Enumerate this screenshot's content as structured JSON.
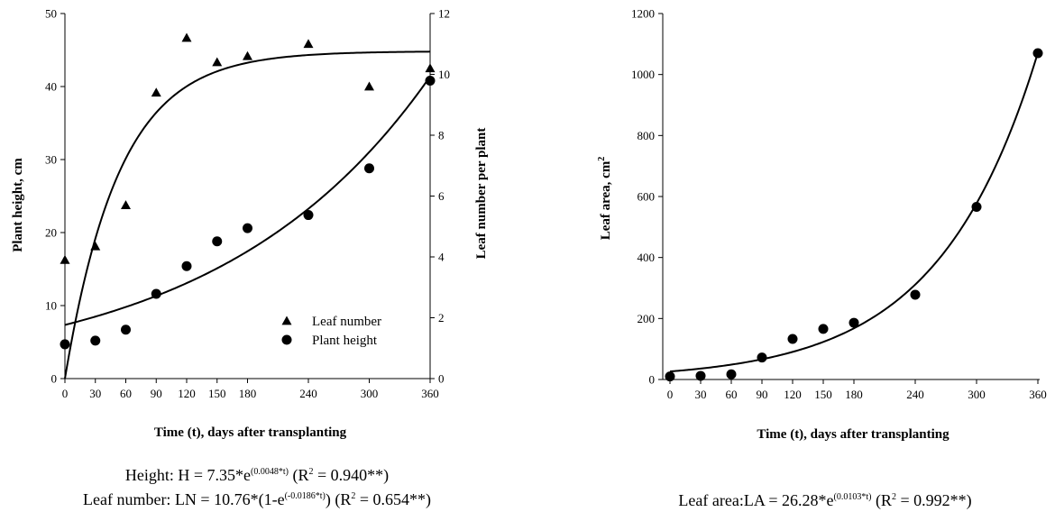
{
  "chart_data": [
    {
      "type": "scatter",
      "xlabel": "Time (t), days after transplanting",
      "ylabel_left": "Plant height, cm",
      "ylabel_right": "Leaf number per plant",
      "x_ticks": [
        0,
        30,
        60,
        90,
        120,
        150,
        180,
        240,
        300,
        360
      ],
      "ylim_left": [
        0,
        50
      ],
      "y_ticks_left": [
        0,
        10,
        20,
        30,
        40,
        50
      ],
      "ylim_right": [
        0,
        12
      ],
      "y_ticks_right": [
        0,
        2,
        4,
        6,
        8,
        10,
        12
      ],
      "grid": false,
      "legend_position": "bottom-right",
      "series": [
        {
          "name": "Leaf number",
          "marker": "triangle",
          "axis": "right",
          "x": [
            0,
            30,
            60,
            90,
            120,
            150,
            180,
            240,
            300,
            360
          ],
          "y": [
            3.9,
            4.35,
            5.7,
            9.4,
            11.2,
            10.4,
            10.6,
            11.0,
            9.6,
            10.2
          ],
          "fit": {
            "model": "LN = 10.76*(1-e^(-0.0186*t))",
            "a": 10.76,
            "b": -0.0186,
            "form": "monomolecular"
          }
        },
        {
          "name": "Plant height",
          "marker": "circle",
          "axis": "left",
          "x": [
            0,
            30,
            60,
            90,
            120,
            150,
            180,
            240,
            300,
            360
          ],
          "y": [
            4.7,
            5.2,
            6.7,
            11.6,
            15.4,
            18.8,
            20.6,
            22.4,
            28.8,
            40.8
          ],
          "fit": {
            "model": "H = 7.35*e^(0.0048*t)",
            "a": 7.35,
            "b": 0.0048,
            "form": "exponential"
          }
        }
      ]
    },
    {
      "type": "scatter",
      "xlabel": "Time (t), days after transplanting",
      "ylabel": "Leaf area, cm",
      "ylabel_superscript": "2",
      "x_ticks": [
        0,
        30,
        60,
        90,
        120,
        150,
        180,
        240,
        300,
        360
      ],
      "ylim": [
        0,
        1200
      ],
      "y_ticks": [
        0,
        200,
        400,
        600,
        800,
        1000,
        1200
      ],
      "grid": false,
      "series": [
        {
          "marker": "circle",
          "x": [
            0,
            30,
            60,
            90,
            120,
            150,
            180,
            240,
            300,
            360
          ],
          "y": [
            10,
            12,
            17,
            72,
            133,
            166,
            186,
            278,
            566,
            1070
          ],
          "fit": {
            "model": "LA = 26.28*e^(0.0103*t)",
            "a": 26.28,
            "b": 0.0103,
            "form": "exponential"
          }
        }
      ]
    }
  ],
  "captions": {
    "left_line1": {
      "prefix": "Height: H = 7.35*e",
      "exp": "(0.0048*t)",
      "r_open": " (R",
      "r_sup": "2",
      "r_rest": " = 0.940**)"
    },
    "left_line2": {
      "prefix": "Leaf number: LN = 10.76*(1-e",
      "exp": "(-0.0186*t)",
      "mid": ")",
      "r_open": " (R",
      "r_sup": "2",
      "r_rest": " = 0.654**)"
    },
    "right_line1": {
      "prefix": "Leaf area:LA = 26.28*e",
      "exp": "(0.0103*t)",
      "r_open": " (R",
      "r_sup": "2",
      "r_rest": " = 0.992**)"
    }
  },
  "colors": {
    "ink": "#000000",
    "background": "#ffffff"
  }
}
